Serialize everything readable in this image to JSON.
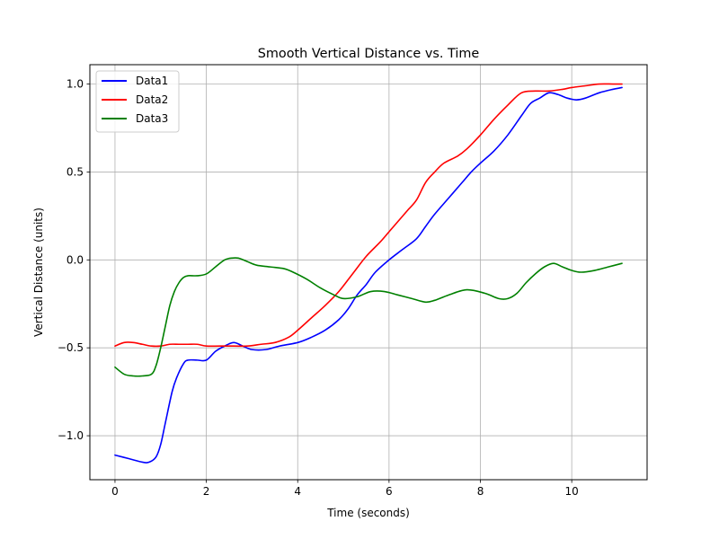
{
  "chart_data": {
    "type": "line",
    "title": "Smooth Vertical Distance vs. Time",
    "xlabel": "Time (seconds)",
    "ylabel": "Vertical Distance (units)",
    "xlim": [
      -0.55,
      11.65
    ],
    "ylim": [
      -1.25,
      1.11
    ],
    "xticks": [
      0,
      2,
      4,
      6,
      8,
      10
    ],
    "xtick_labels": [
      "0",
      "2",
      "4",
      "6",
      "8",
      "10"
    ],
    "yticks": [
      -1.0,
      -0.5,
      0.0,
      0.5,
      1.0
    ],
    "ytick_labels": [
      "−1.0",
      "−0.5",
      "0.0",
      "0.5",
      "1.0"
    ],
    "grid": true,
    "legend_position": "top-left",
    "series": [
      {
        "name": "Data1",
        "color": "#0000ff",
        "x": [
          0,
          0.3,
          0.6,
          0.75,
          0.9,
          1.0,
          1.1,
          1.25,
          1.35,
          1.5,
          1.6,
          1.8,
          2.0,
          2.2,
          2.4,
          2.6,
          2.8,
          3.0,
          3.3,
          3.6,
          4.0,
          4.3,
          4.6,
          4.9,
          5.1,
          5.3,
          5.5,
          5.7,
          6.0,
          6.3,
          6.6,
          6.8,
          7.0,
          7.3,
          7.6,
          7.8,
          8.0,
          8.3,
          8.6,
          8.9,
          9.1,
          9.3,
          9.5,
          9.7,
          9.9,
          10.1,
          10.3,
          10.6,
          10.9,
          11.1
        ],
        "y": [
          -1.11,
          -1.13,
          -1.15,
          -1.15,
          -1.12,
          -1.05,
          -0.93,
          -0.75,
          -0.67,
          -0.59,
          -0.57,
          -0.57,
          -0.57,
          -0.52,
          -0.49,
          -0.47,
          -0.49,
          -0.51,
          -0.51,
          -0.49,
          -0.47,
          -0.44,
          -0.4,
          -0.34,
          -0.28,
          -0.2,
          -0.14,
          -0.07,
          0.0,
          0.06,
          0.12,
          0.19,
          0.26,
          0.35,
          0.44,
          0.5,
          0.55,
          0.62,
          0.71,
          0.82,
          0.89,
          0.92,
          0.95,
          0.94,
          0.92,
          0.91,
          0.92,
          0.95,
          0.97,
          0.98
        ]
      },
      {
        "name": "Data2",
        "color": "#ff0000",
        "x": [
          0,
          0.2,
          0.4,
          0.6,
          0.8,
          1.0,
          1.2,
          1.4,
          1.6,
          1.8,
          2.0,
          2.3,
          2.6,
          2.9,
          3.2,
          3.5,
          3.8,
          4.0,
          4.3,
          4.6,
          4.9,
          5.2,
          5.5,
          5.8,
          6.0,
          6.2,
          6.4,
          6.6,
          6.8,
          7.0,
          7.2,
          7.5,
          7.7,
          8.0,
          8.3,
          8.6,
          8.9,
          9.2,
          9.5,
          9.8,
          10.0,
          10.3,
          10.6,
          10.9,
          11.1
        ],
        "y": [
          -0.49,
          -0.47,
          -0.47,
          -0.48,
          -0.49,
          -0.49,
          -0.48,
          -0.48,
          -0.48,
          -0.48,
          -0.49,
          -0.49,
          -0.49,
          -0.49,
          -0.48,
          -0.47,
          -0.44,
          -0.4,
          -0.33,
          -0.26,
          -0.18,
          -0.08,
          0.02,
          0.1,
          0.16,
          0.22,
          0.28,
          0.34,
          0.44,
          0.5,
          0.55,
          0.59,
          0.63,
          0.71,
          0.8,
          0.88,
          0.95,
          0.96,
          0.96,
          0.97,
          0.98,
          0.99,
          1.0,
          1.0,
          1.0
        ]
      },
      {
        "name": "Data3",
        "color": "#008000",
        "x": [
          0,
          0.2,
          0.4,
          0.6,
          0.8,
          0.9,
          1.0,
          1.1,
          1.2,
          1.3,
          1.4,
          1.5,
          1.6,
          1.8,
          2.0,
          2.2,
          2.4,
          2.55,
          2.7,
          2.9,
          3.1,
          3.4,
          3.7,
          3.9,
          4.2,
          4.5,
          4.8,
          5.0,
          5.3,
          5.6,
          5.9,
          6.2,
          6.5,
          6.8,
          7.0,
          7.3,
          7.7,
          8.1,
          8.4,
          8.6,
          8.8,
          9.0,
          9.2,
          9.4,
          9.6,
          9.8,
          10.0,
          10.2,
          10.5,
          10.8,
          11.1
        ],
        "y": [
          -0.61,
          -0.65,
          -0.66,
          -0.66,
          -0.65,
          -0.6,
          -0.5,
          -0.38,
          -0.26,
          -0.18,
          -0.13,
          -0.1,
          -0.09,
          -0.09,
          -0.08,
          -0.04,
          0.0,
          0.01,
          0.01,
          -0.01,
          -0.03,
          -0.04,
          -0.05,
          -0.07,
          -0.11,
          -0.16,
          -0.2,
          -0.22,
          -0.21,
          -0.18,
          -0.18,
          -0.2,
          -0.22,
          -0.24,
          -0.23,
          -0.2,
          -0.17,
          -0.19,
          -0.22,
          -0.22,
          -0.19,
          -0.13,
          -0.08,
          -0.04,
          -0.02,
          -0.04,
          -0.06,
          -0.07,
          -0.06,
          -0.04,
          -0.02
        ]
      }
    ]
  }
}
